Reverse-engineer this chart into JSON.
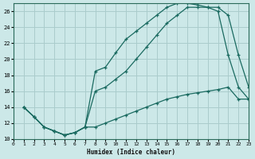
{
  "xlabel": "Humidex (Indice chaleur)",
  "bg_color": "#cce8e8",
  "grid_color": "#aacccc",
  "line_color": "#1a6a60",
  "xlim": [
    0,
    23
  ],
  "ylim": [
    10,
    27
  ],
  "xticks": [
    0,
    1,
    2,
    3,
    4,
    5,
    6,
    7,
    8,
    9,
    10,
    11,
    12,
    13,
    14,
    15,
    16,
    17,
    18,
    19,
    20,
    21,
    22,
    23
  ],
  "yticks": [
    10,
    12,
    14,
    16,
    18,
    20,
    22,
    24,
    26
  ],
  "curve1_x": [
    1,
    2,
    3,
    4,
    5,
    6,
    7,
    8,
    9,
    10,
    11,
    12,
    13,
    14,
    15,
    16,
    17,
    18,
    19,
    20,
    21,
    22,
    23
  ],
  "curve1_y": [
    14.0,
    12.8,
    11.5,
    11.0,
    10.5,
    10.8,
    11.5,
    18.5,
    19.0,
    20.8,
    22.5,
    23.5,
    24.5,
    25.5,
    26.5,
    27.0,
    27.0,
    26.8,
    26.5,
    26.0,
    20.5,
    16.5,
    15.0
  ],
  "curve2_x": [
    1,
    2,
    3,
    4,
    5,
    6,
    7,
    8,
    9,
    10,
    11,
    12,
    13,
    14,
    15,
    16,
    17,
    18,
    19,
    20,
    21,
    22,
    23
  ],
  "curve2_y": [
    14.0,
    12.8,
    11.5,
    11.0,
    10.5,
    10.8,
    11.5,
    16.0,
    16.5,
    17.5,
    18.5,
    20.0,
    21.5,
    23.0,
    24.5,
    25.5,
    26.5,
    26.5,
    26.5,
    26.5,
    25.5,
    20.5,
    16.5
  ],
  "curve3_x": [
    1,
    2,
    3,
    4,
    5,
    6,
    7,
    8,
    9,
    10,
    11,
    12,
    13,
    14,
    15,
    16,
    17,
    18,
    19,
    20,
    21,
    22,
    23
  ],
  "curve3_y": [
    14.0,
    12.8,
    11.5,
    11.0,
    10.5,
    10.8,
    11.5,
    11.5,
    12.0,
    12.5,
    13.0,
    13.5,
    14.0,
    14.5,
    15.0,
    15.3,
    15.6,
    15.8,
    16.0,
    16.2,
    16.5,
    15.0,
    15.0
  ]
}
